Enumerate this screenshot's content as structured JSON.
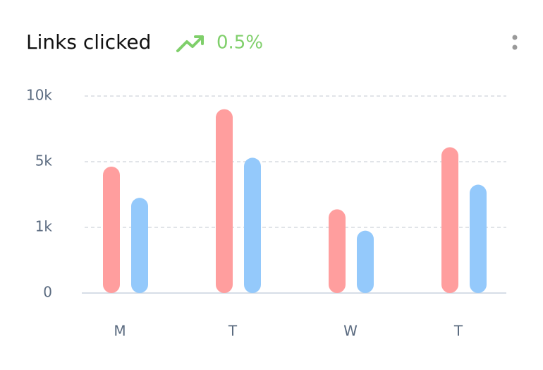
{
  "header": {
    "title": "Links clicked",
    "trend": "0.5%"
  },
  "chart_data": {
    "type": "bar",
    "categories": [
      "M",
      "T",
      "W",
      "T"
    ],
    "series": [
      {
        "color": "#ff9e9e",
        "values": [
          4700,
          9000,
          2100,
          6100
        ]
      },
      {
        "color": "#94c9fb",
        "values": [
          2800,
          5300,
          950,
          3600
        ]
      }
    ],
    "ylim": [
      0,
      10000
    ],
    "yticks": [
      0,
      {
        "value": 1000,
        "label": "1k"
      },
      {
        "value": 5000,
        "label": "5k"
      },
      {
        "value": 10000,
        "label": "10k"
      }
    ],
    "scale": "piecewise",
    "grid": true
  }
}
